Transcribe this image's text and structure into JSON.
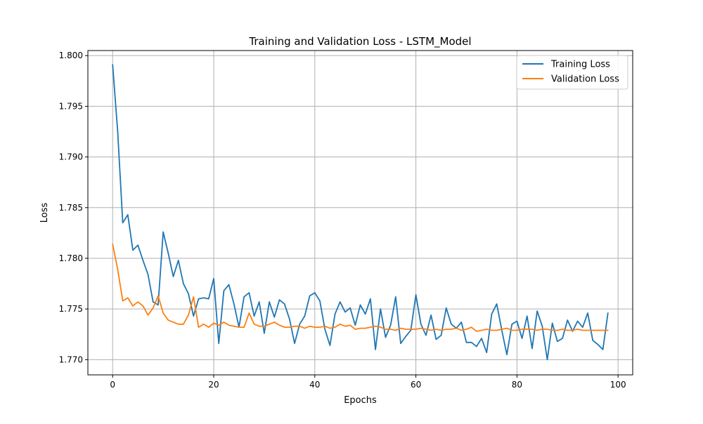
{
  "chart_data": {
    "type": "line",
    "title": "Training and Validation Loss - LSTM_Model",
    "xlabel": "Epochs",
    "ylabel": "Loss",
    "xlim": [
      -4.9,
      102.9
    ],
    "ylim": [
      1.7685,
      1.8005
    ],
    "xticks": [
      0,
      20,
      40,
      60,
      80,
      100
    ],
    "yticks": [
      1.77,
      1.775,
      1.78,
      1.785,
      1.79,
      1.795,
      1.8
    ],
    "ytick_labels": [
      "1.770",
      "1.775",
      "1.780",
      "1.785",
      "1.790",
      "1.795",
      "1.800"
    ],
    "grid": true,
    "legend_position": "top-right",
    "x": [
      0,
      1,
      2,
      3,
      4,
      5,
      6,
      7,
      8,
      9,
      10,
      11,
      12,
      13,
      14,
      15,
      16,
      17,
      18,
      19,
      20,
      21,
      22,
      23,
      24,
      25,
      26,
      27,
      28,
      29,
      30,
      31,
      32,
      33,
      34,
      35,
      36,
      37,
      38,
      39,
      40,
      41,
      42,
      43,
      44,
      45,
      46,
      47,
      48,
      49,
      50,
      51,
      52,
      53,
      54,
      55,
      56,
      57,
      58,
      59,
      60,
      61,
      62,
      63,
      64,
      65,
      66,
      67,
      68,
      69,
      70,
      71,
      72,
      73,
      74,
      75,
      76,
      77,
      78,
      79,
      80,
      81,
      82,
      83,
      84,
      85,
      86,
      87,
      88,
      89,
      90,
      91,
      92,
      93,
      94,
      95,
      96,
      97,
      98
    ],
    "series": [
      {
        "name": "Training Loss",
        "color": "#1f77b4",
        "values": [
          1.7991,
          1.7925,
          1.7835,
          1.7843,
          1.7808,
          1.7813,
          1.7798,
          1.7784,
          1.7757,
          1.7754,
          1.7826,
          1.7805,
          1.7782,
          1.7798,
          1.7775,
          1.7765,
          1.7743,
          1.776,
          1.7761,
          1.776,
          1.778,
          1.7716,
          1.7768,
          1.7774,
          1.7755,
          1.7732,
          1.7762,
          1.7766,
          1.7743,
          1.7757,
          1.7726,
          1.7757,
          1.7742,
          1.7759,
          1.7755,
          1.774,
          1.7716,
          1.7735,
          1.7743,
          1.7763,
          1.7766,
          1.7758,
          1.773,
          1.7714,
          1.7745,
          1.7757,
          1.7747,
          1.7751,
          1.7734,
          1.7754,
          1.7745,
          1.776,
          1.771,
          1.775,
          1.7722,
          1.7734,
          1.7762,
          1.7716,
          1.7723,
          1.7729,
          1.7764,
          1.7735,
          1.7724,
          1.7744,
          1.772,
          1.7724,
          1.7751,
          1.7735,
          1.7731,
          1.7737,
          1.7717,
          1.7717,
          1.7713,
          1.7721,
          1.7707,
          1.7745,
          1.7755,
          1.7729,
          1.7705,
          1.7735,
          1.7738,
          1.7721,
          1.7743,
          1.7711,
          1.7748,
          1.7733,
          1.77,
          1.7736,
          1.7718,
          1.7721,
          1.7739,
          1.7728,
          1.7738,
          1.7732,
          1.7746,
          1.7719,
          1.7715,
          1.771,
          1.7746
        ]
      },
      {
        "name": "Validation Loss",
        "color": "#ff7f0e",
        "values": [
          1.7814,
          1.7789,
          1.7758,
          1.7761,
          1.7753,
          1.7757,
          1.7753,
          1.7744,
          1.7751,
          1.7763,
          1.7746,
          1.7739,
          1.7737,
          1.7735,
          1.7735,
          1.7744,
          1.7762,
          1.7732,
          1.7735,
          1.7732,
          1.7736,
          1.7734,
          1.7737,
          1.7734,
          1.7733,
          1.7732,
          1.7732,
          1.7746,
          1.7735,
          1.7733,
          1.7733,
          1.7735,
          1.7737,
          1.7734,
          1.7732,
          1.7732,
          1.7733,
          1.7733,
          1.7731,
          1.7733,
          1.7732,
          1.7732,
          1.7733,
          1.7731,
          1.7732,
          1.7735,
          1.7733,
          1.7734,
          1.773,
          1.7731,
          1.7731,
          1.7732,
          1.7733,
          1.7732,
          1.773,
          1.773,
          1.7729,
          1.7731,
          1.773,
          1.773,
          1.773,
          1.7731,
          1.773,
          1.7729,
          1.773,
          1.7729,
          1.773,
          1.773,
          1.7731,
          1.7729,
          1.773,
          1.7732,
          1.7728,
          1.7729,
          1.773,
          1.7729,
          1.7729,
          1.773,
          1.7731,
          1.7729,
          1.7729,
          1.773,
          1.773,
          1.773,
          1.7729,
          1.773,
          1.773,
          1.7729,
          1.7729,
          1.773,
          1.7729,
          1.7729,
          1.773,
          1.7729,
          1.7729,
          1.7729,
          1.7729,
          1.7729,
          1.7729
        ]
      }
    ]
  }
}
